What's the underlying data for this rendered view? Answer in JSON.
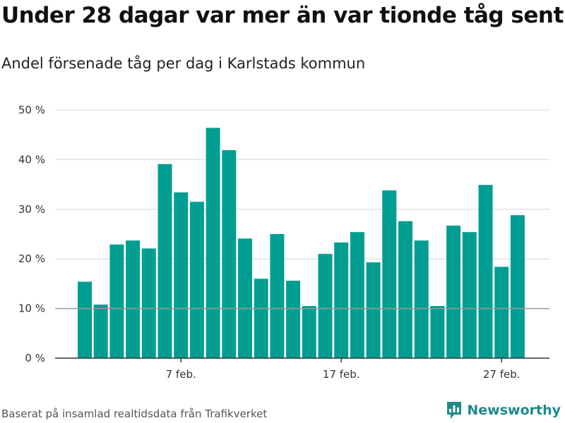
{
  "header": {
    "title": "Under 28 dagar var mer än var tionde tåg sent",
    "subtitle": "Andel försenade tåg per dag i Karlstads kommun"
  },
  "footer": {
    "source": "Baserat på insamlad realtidsdata från Trafikverket",
    "brand": "Newsworthy"
  },
  "colors": {
    "bar": "#009e92",
    "reference_line": "#9a9a9a",
    "grid": "#e3e3e3",
    "axis": "#333333",
    "brand": "#1e8a8a"
  },
  "icons": {
    "brand_logo": "newsworthy-logo-icon"
  },
  "chart_data": {
    "type": "bar",
    "title": "Under 28 dagar var mer än var tionde tåg sent",
    "subtitle": "Andel försenade tåg per dag i Karlstads kommun",
    "xlabel": "",
    "ylabel": "",
    "ylim": [
      0,
      50
    ],
    "yticks": [
      0,
      10,
      20,
      30,
      40,
      50
    ],
    "ytick_labels": [
      "0 %",
      "10 %",
      "20 %",
      "30 %",
      "40 %",
      "50 %"
    ],
    "xtick_labels": [
      {
        "index": 6,
        "label": "7 feb."
      },
      {
        "index": 16,
        "label": "17 feb."
      },
      {
        "index": 26,
        "label": "27 feb."
      }
    ],
    "reference_line": 10,
    "grid": true,
    "unit": "%",
    "categories": [
      "1",
      "2",
      "3",
      "4",
      "5",
      "6",
      "7",
      "8",
      "9",
      "10",
      "11",
      "12",
      "13",
      "14",
      "15",
      "16",
      "17",
      "18",
      "19",
      "20",
      "21",
      "22",
      "23",
      "24",
      "25",
      "26",
      "27",
      "28"
    ],
    "values": [
      15.4,
      10.8,
      22.9,
      23.7,
      22.1,
      39.1,
      33.4,
      31.5,
      46.4,
      41.9,
      24.1,
      16.0,
      25.0,
      15.6,
      10.5,
      21.0,
      23.3,
      25.4,
      19.3,
      33.8,
      27.6,
      23.7,
      10.5,
      26.7,
      25.4,
      34.9,
      18.4,
      28.8
    ]
  }
}
